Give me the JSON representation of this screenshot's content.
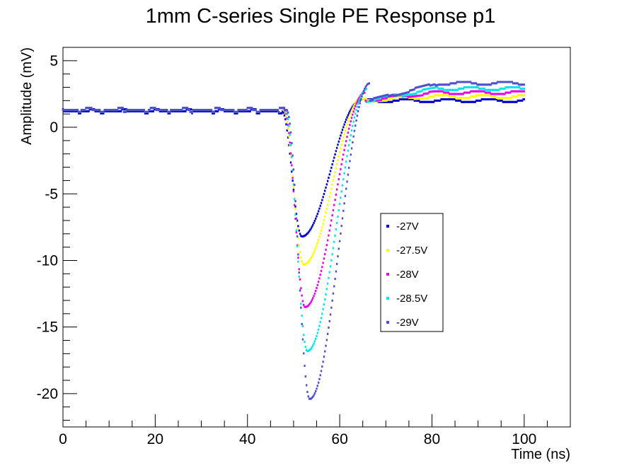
{
  "chart_data": {
    "type": "scatter",
    "title": "1mm C-series Single PE Response p1",
    "xlabel": "Time (ns)",
    "ylabel": "Amplitude (mV)",
    "xlim": [
      0,
      110
    ],
    "ylim": [
      -22.5,
      6
    ],
    "xticks": [
      0,
      20,
      40,
      60,
      80,
      100
    ],
    "yticks": [
      5,
      0,
      -5,
      -10,
      -15,
      -20
    ],
    "legend_position": "right-center",
    "series": [
      {
        "name": "-27V",
        "color": "#0000cc",
        "baseline": 1.2,
        "peak_time": 51.8,
        "peak_value": -8.2,
        "pulse_start": 47.5,
        "settle_time": 64.5,
        "tail": 2.0
      },
      {
        "name": "-27.5V",
        "color": "#ffff00",
        "baseline": 1.3,
        "peak_time": 52.2,
        "peak_value": -10.3,
        "pulse_start": 47.8,
        "settle_time": 65.0,
        "tail": 2.3
      },
      {
        "name": "-28V",
        "color": "#e600e6",
        "baseline": 1.3,
        "peak_time": 52.5,
        "peak_value": -13.5,
        "pulse_start": 48.0,
        "settle_time": 65.5,
        "tail": 2.6
      },
      {
        "name": "-28.5V",
        "color": "#00e5e5",
        "baseline": 1.3,
        "peak_time": 53.0,
        "peak_value": -16.8,
        "pulse_start": 48.2,
        "settle_time": 66.0,
        "tail": 2.9
      },
      {
        "name": "-29V",
        "color": "#5050cc",
        "baseline": 1.3,
        "peak_time": 53.5,
        "peak_value": -20.4,
        "pulse_start": 48.5,
        "settle_time": 66.5,
        "tail": 3.3
      }
    ]
  }
}
